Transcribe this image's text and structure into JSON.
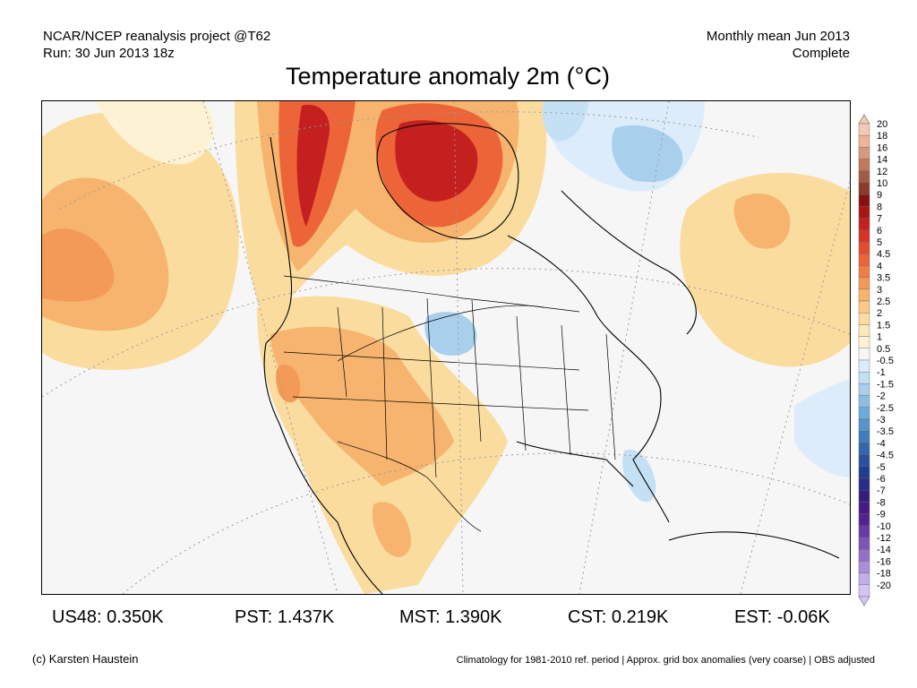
{
  "header": {
    "left_line1": "NCAR/NCEP reanalysis project @T62",
    "left_line2": "Run: 30 Jun 2013 18z",
    "right_line1": "Monthly mean Jun 2013",
    "right_line2": "Complete"
  },
  "title": "Temperature anomaly 2m (°C)",
  "colorbar": {
    "labels": [
      "20",
      "18",
      "16",
      "14",
      "12",
      "10",
      "9",
      "8",
      "7",
      "6",
      "5",
      "4.5",
      "4",
      "3.5",
      "3",
      "2.5",
      "2",
      "1.5",
      "1",
      "0.5",
      "-0.5",
      "-1",
      "-1.5",
      "-2",
      "-2.5",
      "-3",
      "-3.5",
      "-4",
      "-4.5",
      "-5",
      "-6",
      "-7",
      "-8",
      "-9",
      "-10",
      "-12",
      "-14",
      "-16",
      "-18",
      "-20"
    ],
    "colors": [
      "#f4c8b4",
      "#ecb49a",
      "#d8987c",
      "#c0785e",
      "#a45a44",
      "#8c3a30",
      "#8a1010",
      "#a81616",
      "#c42020",
      "#d83228",
      "#e44a30",
      "#ec6438",
      "#f07e44",
      "#f49a58",
      "#f6b46e",
      "#f8ca86",
      "#fadc9e",
      "#fce9b8",
      "#fdf3d4",
      "#f6f6f6",
      "#dcecfa",
      "#c4e0f4",
      "#a8d0ec",
      "#8cbee4",
      "#70aad8",
      "#5694ca",
      "#427cbc",
      "#3466ae",
      "#2a509e",
      "#223c90",
      "#2a2c88",
      "#361e80",
      "#461a84",
      "#562290",
      "#6a3aa4",
      "#7e54b6",
      "#9470c8",
      "#aa8ed8",
      "#c2acea",
      "#d4c4f6"
    ]
  },
  "map": {
    "region": "North America",
    "projection": "polar stereographic"
  },
  "stats": [
    {
      "label": "US48: 0.350K"
    },
    {
      "label": "PST: 1.437K"
    },
    {
      "label": "MST: 1.390K"
    },
    {
      "label": "CST: 0.219K"
    },
    {
      "label": "EST: -0.06K"
    }
  ],
  "footer": {
    "left": "(c) Karsten Haustein",
    "right": "Climatology for 1981-2010 ref. period | Approx. grid box anomalies (very coarse) | OBS adjusted"
  }
}
